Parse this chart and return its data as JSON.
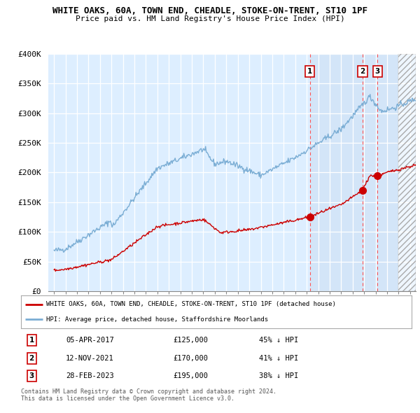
{
  "title1": "WHITE OAKS, 60A, TOWN END, CHEADLE, STOKE-ON-TRENT, ST10 1PF",
  "title2": "Price paid vs. HM Land Registry's House Price Index (HPI)",
  "ylim": [
    0,
    400000
  ],
  "yticks": [
    0,
    50000,
    100000,
    150000,
    200000,
    250000,
    300000,
    350000,
    400000
  ],
  "ytick_labels": [
    "£0",
    "£50K",
    "£100K",
    "£150K",
    "£200K",
    "£250K",
    "£300K",
    "£350K",
    "£400K"
  ],
  "hpi_color": "#7aadd4",
  "price_color": "#cc0000",
  "vline_color": "#ff5555",
  "legend_label_red": "WHITE OAKS, 60A, TOWN END, CHEADLE, STOKE-ON-TRENT, ST10 1PF (detached house)",
  "legend_label_blue": "HPI: Average price, detached house, Staffordshire Moorlands",
  "sale1_x": 2017.27,
  "sale1_price": 125000,
  "sale1_text": "45% ↓ HPI",
  "sale1_date": "05-APR-2017",
  "sale2_x": 2021.87,
  "sale2_price": 170000,
  "sale2_text": "41% ↓ HPI",
  "sale2_date": "12-NOV-2021",
  "sale3_x": 2023.16,
  "sale3_price": 195000,
  "sale3_text": "38% ↓ HPI",
  "sale3_date": "28-FEB-2023",
  "footnote": "Contains HM Land Registry data © Crown copyright and database right 2024.\nThis data is licensed under the Open Government Licence v3.0.",
  "bg_color": "#ffffff",
  "plot_bg_color": "#ddeeff",
  "hatch_start": 2025.0,
  "xmin": 1995.0,
  "xmax": 2026.5
}
